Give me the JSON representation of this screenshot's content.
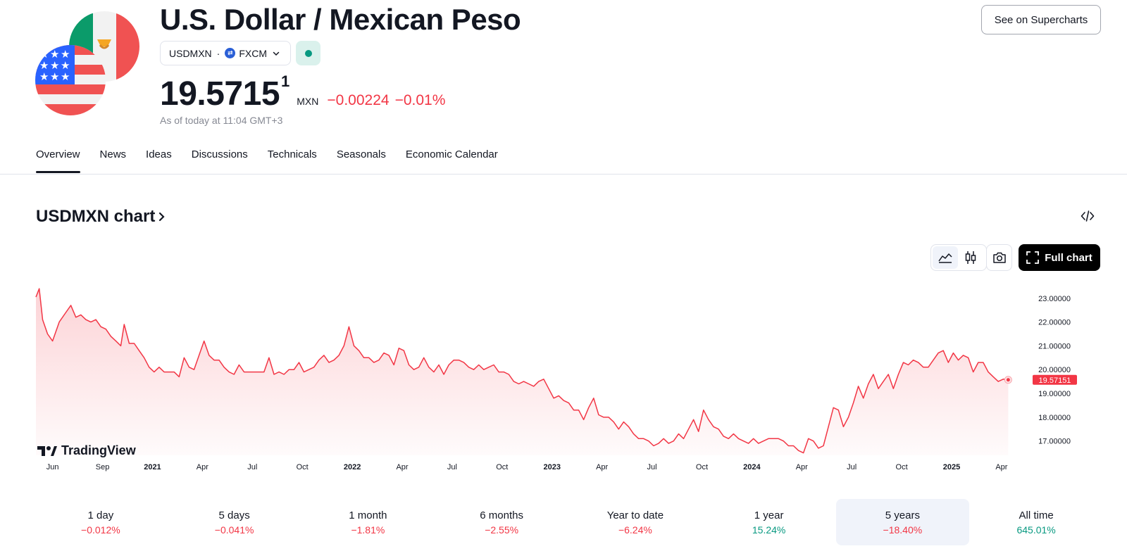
{
  "header": {
    "title": "U.S. Dollar / Mexican Peso",
    "symbol": "USDMXN",
    "separator": "·",
    "exchange": "FXCM",
    "price_main": "19.5715",
    "price_super": "1",
    "currency": "MXN",
    "change": "−0.00224",
    "change_pct": "−0.01%",
    "as_of": "As of today at 11:04 GMT+3",
    "market_status_color": "#089981",
    "supercharts_label": "See on Supercharts"
  },
  "tabs": [
    {
      "label": "Overview",
      "active": true
    },
    {
      "label": "News"
    },
    {
      "label": "Ideas"
    },
    {
      "label": "Discussions"
    },
    {
      "label": "Technicals"
    },
    {
      "label": "Seasonals"
    },
    {
      "label": "Economic Calendar"
    }
  ],
  "chart_section": {
    "heading": "USDMXN chart",
    "full_chart_label": "Full chart",
    "branding": "TradingView"
  },
  "chart_data": {
    "type": "area",
    "series": [
      {
        "name": "USDMXN",
        "color": "#f23645"
      }
    ],
    "x_ticks": [
      {
        "label": "Jun",
        "t": 0.0,
        "bold": false
      },
      {
        "label": "Sep",
        "t": 3.0,
        "bold": false
      },
      {
        "label": "2021",
        "t": 6.0,
        "bold": true
      },
      {
        "label": "Apr",
        "t": 9.0,
        "bold": false
      },
      {
        "label": "Jul",
        "t": 12.0,
        "bold": false
      },
      {
        "label": "Oct",
        "t": 15.0,
        "bold": false
      },
      {
        "label": "2022",
        "t": 18.0,
        "bold": true
      },
      {
        "label": "Apr",
        "t": 21.0,
        "bold": false
      },
      {
        "label": "Jul",
        "t": 24.0,
        "bold": false
      },
      {
        "label": "Oct",
        "t": 27.0,
        "bold": false
      },
      {
        "label": "2023",
        "t": 30.0,
        "bold": true
      },
      {
        "label": "Apr",
        "t": 33.0,
        "bold": false
      },
      {
        "label": "Jul",
        "t": 36.0,
        "bold": false
      },
      {
        "label": "Oct",
        "t": 39.0,
        "bold": false
      },
      {
        "label": "2024",
        "t": 42.0,
        "bold": true
      },
      {
        "label": "Apr",
        "t": 45.0,
        "bold": false
      },
      {
        "label": "Jul",
        "t": 48.0,
        "bold": false
      },
      {
        "label": "Oct",
        "t": 51.0,
        "bold": false
      },
      {
        "label": "2025",
        "t": 54.0,
        "bold": true
      },
      {
        "label": "Apr",
        "t": 57.0,
        "bold": false
      }
    ],
    "x_range_months": [
      -1.0,
      58.4
    ],
    "y_ticks": [
      "23.00000",
      "22.00000",
      "21.00000",
      "20.00000",
      "19.00000",
      "18.00000",
      "17.00000"
    ],
    "y_tick_values": [
      23,
      22,
      21,
      20,
      19,
      18,
      17
    ],
    "ylim": [
      16.4,
      23.85
    ],
    "last_value_label": "19.57151",
    "last_value": 19.57,
    "points": [
      [
        -1.0,
        23.05
      ],
      [
        -0.8,
        23.4
      ],
      [
        -0.6,
        22.1
      ],
      [
        -0.3,
        21.5
      ],
      [
        0.0,
        21.2
      ],
      [
        0.4,
        22.0
      ],
      [
        0.8,
        22.4
      ],
      [
        1.1,
        22.7
      ],
      [
        1.4,
        22.2
      ],
      [
        1.7,
        22.3
      ],
      [
        2.0,
        22.1
      ],
      [
        2.3,
        22.0
      ],
      [
        2.6,
        22.1
      ],
      [
        2.9,
        21.8
      ],
      [
        3.2,
        21.7
      ],
      [
        3.5,
        21.4
      ],
      [
        3.8,
        21.2
      ],
      [
        4.1,
        21.0
      ],
      [
        4.3,
        21.9
      ],
      [
        4.6,
        21.1
      ],
      [
        4.9,
        21.1
      ],
      [
        5.2,
        20.8
      ],
      [
        5.5,
        20.5
      ],
      [
        5.8,
        20.1
      ],
      [
        6.1,
        19.9
      ],
      [
        6.4,
        20.1
      ],
      [
        6.7,
        19.9
      ],
      [
        7.0,
        19.9
      ],
      [
        7.3,
        19.9
      ],
      [
        7.6,
        19.7
      ],
      [
        7.9,
        20.5
      ],
      [
        8.2,
        20.1
      ],
      [
        8.5,
        20.0
      ],
      [
        8.8,
        20.6
      ],
      [
        9.1,
        21.2
      ],
      [
        9.4,
        20.6
      ],
      [
        9.7,
        20.4
      ],
      [
        10.0,
        20.4
      ],
      [
        10.3,
        20.1
      ],
      [
        10.6,
        19.9
      ],
      [
        10.9,
        19.8
      ],
      [
        11.2,
        20.2
      ],
      [
        11.5,
        19.9
      ],
      [
        11.8,
        19.9
      ],
      [
        12.1,
        19.9
      ],
      [
        12.4,
        19.9
      ],
      [
        12.7,
        19.9
      ],
      [
        13.0,
        20.5
      ],
      [
        13.3,
        19.8
      ],
      [
        13.6,
        19.9
      ],
      [
        13.9,
        19.8
      ],
      [
        14.2,
        20.0
      ],
      [
        14.5,
        20.0
      ],
      [
        14.8,
        20.3
      ],
      [
        15.1,
        19.9
      ],
      [
        15.4,
        20.0
      ],
      [
        15.7,
        20.1
      ],
      [
        16.0,
        20.4
      ],
      [
        16.3,
        20.6
      ],
      [
        16.6,
        20.3
      ],
      [
        16.9,
        20.4
      ],
      [
        17.2,
        20.6
      ],
      [
        17.5,
        21.0
      ],
      [
        17.8,
        21.8
      ],
      [
        18.1,
        21.0
      ],
      [
        18.4,
        20.8
      ],
      [
        18.7,
        20.5
      ],
      [
        19.0,
        20.5
      ],
      [
        19.3,
        20.3
      ],
      [
        19.6,
        20.4
      ],
      [
        19.9,
        20.7
      ],
      [
        20.2,
        20.6
      ],
      [
        20.5,
        20.2
      ],
      [
        20.8,
        20.9
      ],
      [
        21.1,
        20.8
      ],
      [
        21.4,
        20.2
      ],
      [
        21.7,
        20.0
      ],
      [
        22.0,
        20.1
      ],
      [
        22.3,
        20.5
      ],
      [
        22.6,
        20.1
      ],
      [
        22.9,
        19.9
      ],
      [
        23.2,
        20.2
      ],
      [
        23.5,
        19.8
      ],
      [
        23.8,
        20.2
      ],
      [
        24.1,
        20.4
      ],
      [
        24.4,
        20.4
      ],
      [
        24.7,
        20.3
      ],
      [
        25.0,
        20.1
      ],
      [
        25.3,
        20.0
      ],
      [
        25.6,
        20.2
      ],
      [
        25.9,
        20.0
      ],
      [
        26.2,
        20.1
      ],
      [
        26.5,
        20.2
      ],
      [
        26.8,
        19.9
      ],
      [
        27.1,
        19.9
      ],
      [
        27.4,
        19.8
      ],
      [
        27.7,
        19.5
      ],
      [
        28.0,
        19.4
      ],
      [
        28.3,
        19.5
      ],
      [
        28.6,
        19.4
      ],
      [
        28.9,
        19.3
      ],
      [
        29.2,
        19.5
      ],
      [
        29.5,
        19.6
      ],
      [
        29.8,
        19.2
      ],
      [
        30.1,
        18.8
      ],
      [
        30.4,
        18.9
      ],
      [
        30.7,
        18.7
      ],
      [
        31.0,
        18.6
      ],
      [
        31.3,
        18.3
      ],
      [
        31.6,
        18.3
      ],
      [
        31.9,
        17.9
      ],
      [
        32.2,
        18.4
      ],
      [
        32.5,
        18.8
      ],
      [
        32.8,
        18.1
      ],
      [
        33.1,
        18.0
      ],
      [
        33.4,
        18.0
      ],
      [
        33.7,
        17.8
      ],
      [
        34.0,
        17.5
      ],
      [
        34.3,
        17.8
      ],
      [
        34.6,
        17.6
      ],
      [
        34.9,
        17.3
      ],
      [
        35.2,
        17.1
      ],
      [
        35.5,
        17.1
      ],
      [
        35.8,
        17.0
      ],
      [
        36.1,
        16.8
      ],
      [
        36.4,
        16.9
      ],
      [
        36.7,
        17.1
      ],
      [
        37.0,
        16.9
      ],
      [
        37.3,
        17.0
      ],
      [
        37.6,
        17.3
      ],
      [
        37.9,
        17.1
      ],
      [
        38.2,
        17.5
      ],
      [
        38.5,
        17.9
      ],
      [
        38.8,
        17.4
      ],
      [
        39.1,
        18.3
      ],
      [
        39.4,
        17.9
      ],
      [
        39.7,
        17.6
      ],
      [
        40.0,
        17.5
      ],
      [
        40.3,
        17.2
      ],
      [
        40.6,
        17.1
      ],
      [
        40.9,
        17.3
      ],
      [
        41.2,
        17.1
      ],
      [
        41.5,
        17.0
      ],
      [
        41.8,
        16.9
      ],
      [
        42.1,
        17.1
      ],
      [
        42.4,
        16.9
      ],
      [
        42.7,
        17.0
      ],
      [
        43.0,
        17.1
      ],
      [
        43.3,
        17.1
      ],
      [
        43.6,
        17.1
      ],
      [
        43.9,
        17.0
      ],
      [
        44.2,
        16.8
      ],
      [
        44.5,
        16.8
      ],
      [
        44.8,
        16.6
      ],
      [
        45.1,
        16.5
      ],
      [
        45.4,
        17.1
      ],
      [
        45.7,
        17.0
      ],
      [
        46.0,
        16.7
      ],
      [
        46.3,
        16.8
      ],
      [
        46.6,
        17.6
      ],
      [
        46.9,
        18.4
      ],
      [
        47.2,
        18.3
      ],
      [
        47.5,
        17.6
      ],
      [
        47.8,
        18.0
      ],
      [
        48.1,
        18.6
      ],
      [
        48.4,
        19.3
      ],
      [
        48.7,
        18.8
      ],
      [
        49.0,
        19.4
      ],
      [
        49.3,
        19.8
      ],
      [
        49.6,
        19.2
      ],
      [
        49.9,
        19.5
      ],
      [
        50.2,
        19.8
      ],
      [
        50.5,
        19.2
      ],
      [
        50.8,
        19.8
      ],
      [
        51.1,
        20.3
      ],
      [
        51.4,
        20.2
      ],
      [
        51.7,
        20.4
      ],
      [
        52.0,
        20.3
      ],
      [
        52.3,
        20.1
      ],
      [
        52.6,
        20.1
      ],
      [
        52.9,
        20.4
      ],
      [
        53.2,
        20.7
      ],
      [
        53.5,
        20.8
      ],
      [
        53.8,
        20.3
      ],
      [
        54.1,
        20.7
      ],
      [
        54.4,
        20.4
      ],
      [
        54.7,
        20.6
      ],
      [
        55.0,
        20.5
      ],
      [
        55.3,
        19.9
      ],
      [
        55.6,
        20.3
      ],
      [
        55.9,
        20.3
      ],
      [
        56.2,
        19.9
      ],
      [
        56.5,
        19.7
      ],
      [
        56.8,
        19.5
      ],
      [
        57.1,
        19.6
      ],
      [
        57.4,
        19.57
      ]
    ]
  },
  "periods": [
    {
      "label": "1 day",
      "value": "−0.012%",
      "tone": "neg"
    },
    {
      "label": "5 days",
      "value": "−0.041%",
      "tone": "neg"
    },
    {
      "label": "1 month",
      "value": "−1.81%",
      "tone": "neg"
    },
    {
      "label": "6 months",
      "value": "−2.55%",
      "tone": "neg"
    },
    {
      "label": "Year to date",
      "value": "−6.24%",
      "tone": "neg"
    },
    {
      "label": "1 year",
      "value": "15.24%",
      "tone": "pos"
    },
    {
      "label": "5 years",
      "value": "−18.40%",
      "tone": "neg",
      "active": true
    },
    {
      "label": "All time",
      "value": "645.01%",
      "tone": "pos"
    }
  ]
}
